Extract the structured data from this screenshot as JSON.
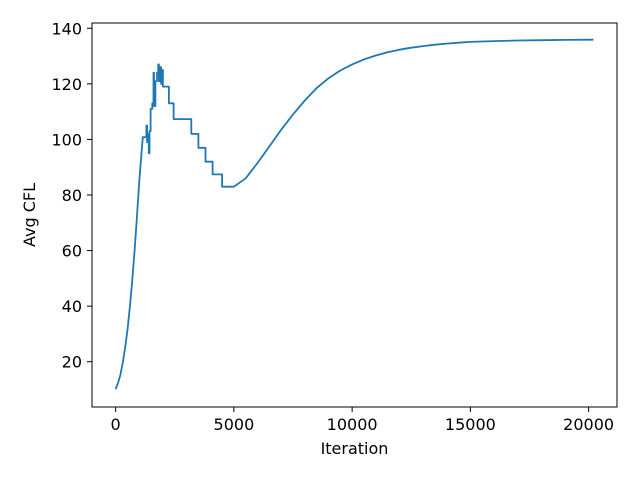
{
  "chart_data": {
    "type": "line",
    "title": "",
    "xlabel": "Iteration",
    "ylabel": "Avg CFL",
    "xlim": [
      -1000,
      21200
    ],
    "ylim": [
      3.7,
      141.9
    ],
    "x_ticks": [
      0,
      5000,
      10000,
      15000,
      20000
    ],
    "y_ticks": [
      20,
      40,
      60,
      80,
      100,
      120,
      140
    ],
    "grid": false,
    "legend": "none",
    "series": [
      {
        "color": "#1f77b4",
        "points": [
          [
            0,
            10.1
          ],
          [
            100,
            12.3
          ],
          [
            200,
            15.3
          ],
          [
            300,
            19.5
          ],
          [
            400,
            25
          ],
          [
            500,
            31.5
          ],
          [
            600,
            39.5
          ],
          [
            700,
            49
          ],
          [
            800,
            60
          ],
          [
            900,
            72
          ],
          [
            1000,
            85
          ],
          [
            1100,
            96
          ],
          [
            1150,
            100.8
          ],
          [
            1300,
            100.8
          ],
          [
            1300,
            105
          ],
          [
            1330,
            105
          ],
          [
            1330,
            99
          ],
          [
            1360,
            99
          ],
          [
            1360,
            102
          ],
          [
            1400,
            102
          ],
          [
            1400,
            95
          ],
          [
            1430,
            95
          ],
          [
            1430,
            103
          ],
          [
            1480,
            103
          ],
          [
            1480,
            111
          ],
          [
            1550,
            111
          ],
          [
            1550,
            113
          ],
          [
            1600,
            113
          ],
          [
            1600,
            124
          ],
          [
            1620,
            124
          ],
          [
            1620,
            112
          ],
          [
            1680,
            112
          ],
          [
            1680,
            121
          ],
          [
            1750,
            121
          ],
          [
            1750,
            124
          ],
          [
            1800,
            124
          ],
          [
            1800,
            127
          ],
          [
            1830,
            127
          ],
          [
            1830,
            121
          ],
          [
            1870,
            121
          ],
          [
            1870,
            126
          ],
          [
            1920,
            126
          ],
          [
            1920,
            120
          ],
          [
            1960,
            120
          ],
          [
            1960,
            125
          ],
          [
            2000,
            125
          ],
          [
            2000,
            119
          ],
          [
            2250,
            119
          ],
          [
            2250,
            113
          ],
          [
            2450,
            113
          ],
          [
            2450,
            107.3
          ],
          [
            3200,
            107.3
          ],
          [
            3200,
            102
          ],
          [
            3500,
            102
          ],
          [
            3500,
            97
          ],
          [
            3800,
            97
          ],
          [
            3800,
            92
          ],
          [
            4100,
            92
          ],
          [
            4100,
            87.4
          ],
          [
            4500,
            87.4
          ],
          [
            4500,
            83
          ],
          [
            5000,
            83
          ],
          [
            5500,
            86
          ],
          [
            6000,
            91.5
          ],
          [
            6500,
            97.5
          ],
          [
            7000,
            103.5
          ],
          [
            7500,
            109
          ],
          [
            8000,
            114
          ],
          [
            8500,
            118.5
          ],
          [
            9000,
            122
          ],
          [
            9500,
            124.8
          ],
          [
            10000,
            127
          ],
          [
            10500,
            128.8
          ],
          [
            11000,
            130.2
          ],
          [
            11500,
            131.4
          ],
          [
            12000,
            132.3
          ],
          [
            12500,
            133
          ],
          [
            13000,
            133.6
          ],
          [
            13500,
            134.1
          ],
          [
            14000,
            134.5
          ],
          [
            14500,
            134.8
          ],
          [
            15000,
            135.1
          ],
          [
            16000,
            135.4
          ],
          [
            17000,
            135.6
          ],
          [
            18000,
            135.7
          ],
          [
            19000,
            135.8
          ],
          [
            20200,
            135.9
          ]
        ]
      }
    ]
  }
}
